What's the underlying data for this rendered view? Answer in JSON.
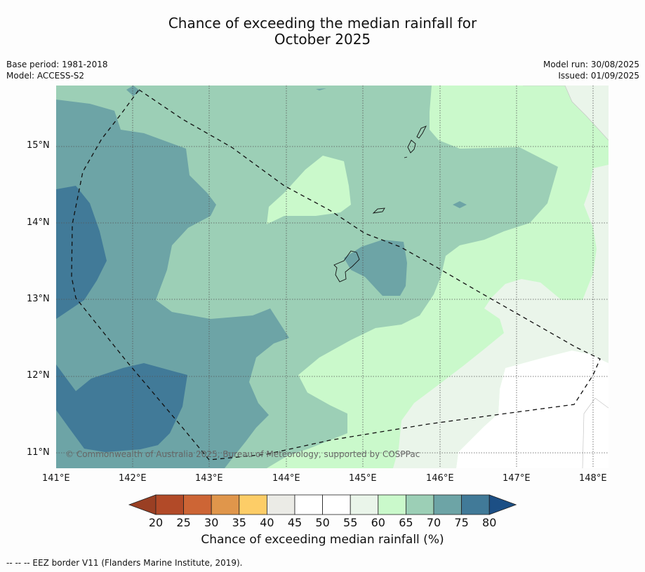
{
  "title_line1": "Chance of exceeding the median rainfall for",
  "title_line2": "October 2025",
  "meta_left": [
    "Base period: 1981-2018",
    "Model: ACCESS-S2"
  ],
  "meta_right": [
    "Model run: 30/08/2025",
    "Issued: 01/09/2025"
  ],
  "lon_ticks": [
    "141°E",
    "142°E",
    "143°E",
    "144°E",
    "145°E",
    "146°E",
    "147°E",
    "148°E"
  ],
  "lat_ticks": [
    "15°N",
    "14°N",
    "13°N",
    "12°N",
    "11°N"
  ],
  "copyright": "© Commonwealth of Australia 2025, Bureau of Meteorology, supported by COSPPac",
  "colorbar": {
    "labels": [
      "20",
      "25",
      "30",
      "35",
      "40",
      "45",
      "50",
      "55",
      "60",
      "65",
      "70",
      "75",
      "80"
    ],
    "colors": [
      "#b24a28",
      "#cd6535",
      "#e0964b",
      "#fdcd67",
      "#ebebe6",
      "#ffffff",
      "#ffffff",
      "#eaf5ea",
      "#caf9cb",
      "#9ccfb6",
      "#6da4a6",
      "#417a98"
    ],
    "under_color": "#9a3f23",
    "over_color": "#1c4f85",
    "title": "Chance of exceeding median rainfall (%)"
  },
  "footnote": "--  --  -- EEZ border V11 (Flanders Marine Institute, 2019)."
}
